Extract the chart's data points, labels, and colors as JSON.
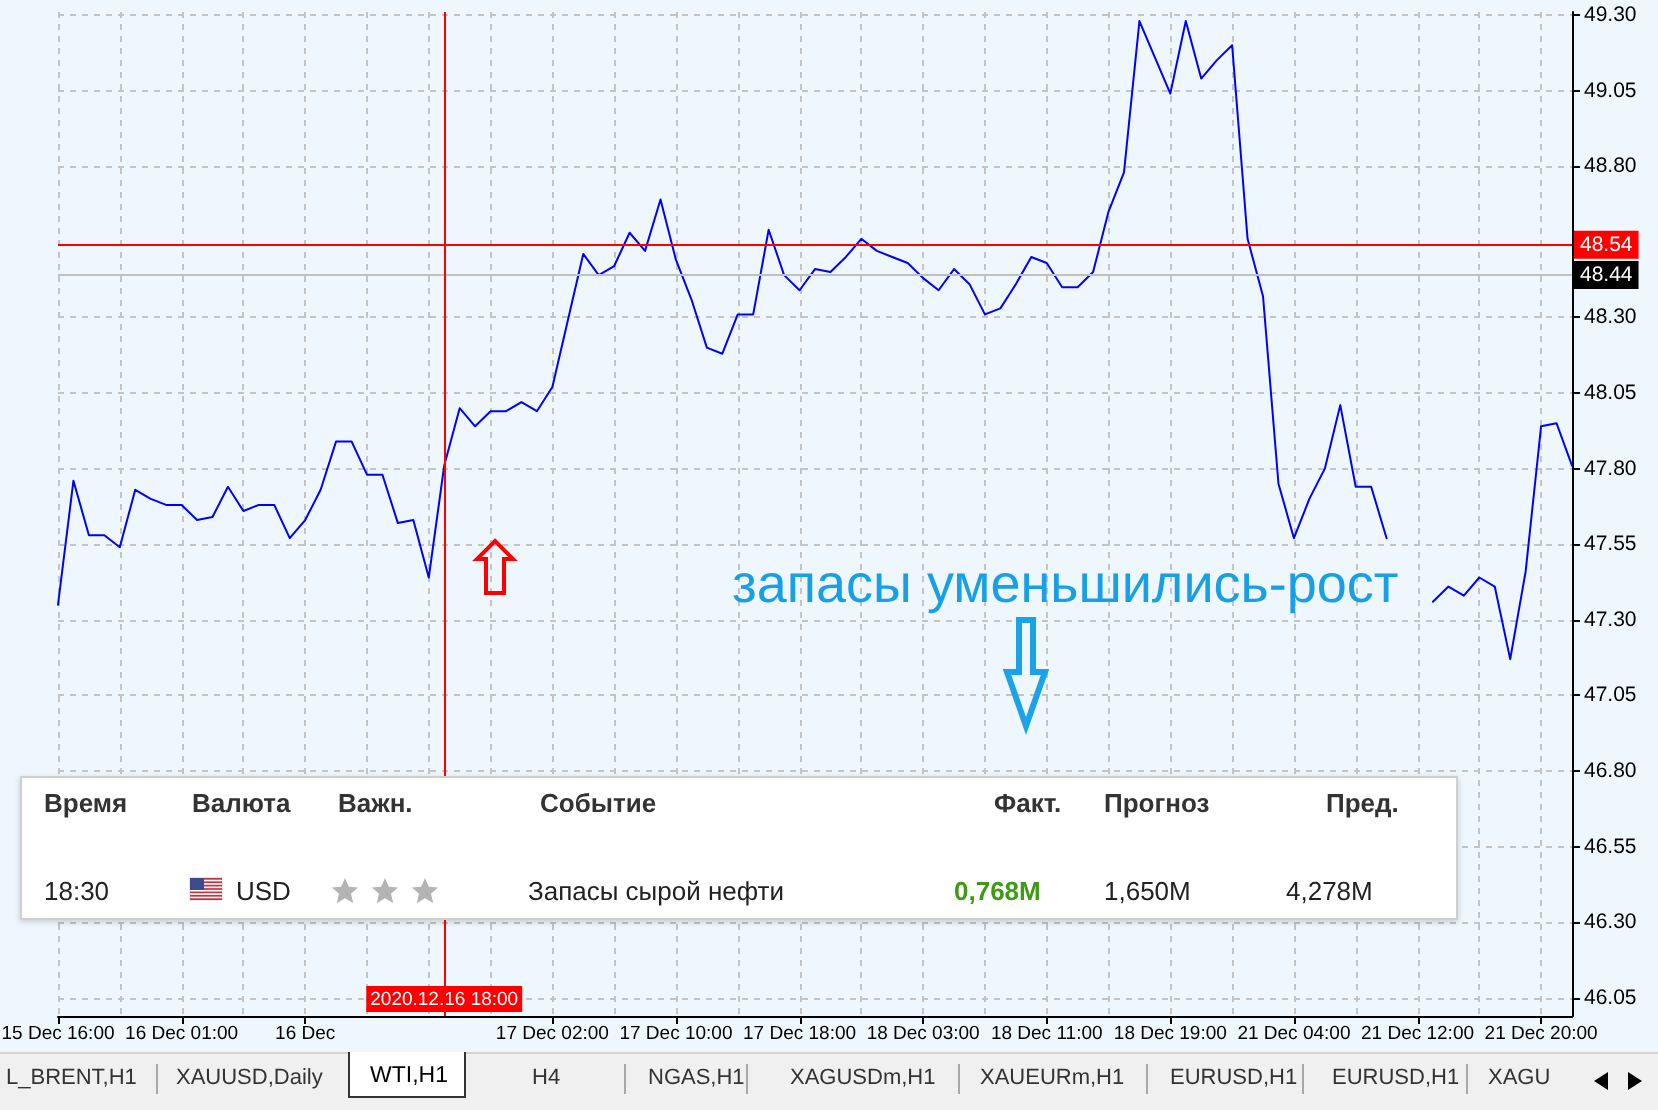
{
  "chart_data": {
    "type": "line",
    "categories": [
      "15 Dec 16:00",
      null,
      null,
      null,
      null,
      null,
      null,
      null,
      "16 Dec 01:00",
      null,
      null,
      null,
      null,
      null,
      null,
      null,
      "16 Dec",
      null,
      null,
      null,
      null,
      null,
      null,
      null,
      null,
      "2020.12.16 18:00",
      null,
      null,
      null,
      null,
      null,
      null,
      "17 Dec 02:00",
      null,
      null,
      null,
      null,
      null,
      null,
      null,
      "17 Dec 10:00",
      null,
      null,
      null,
      null,
      null,
      null,
      null,
      "17 Dec 18:00",
      null,
      null,
      null,
      null,
      null,
      null,
      null,
      "18 Dec 03:00",
      null,
      null,
      null,
      null,
      null,
      null,
      null,
      "18 Dec 11:00",
      null,
      null,
      null,
      null,
      null,
      null,
      null,
      "18 Dec 19:00",
      null,
      null,
      null,
      null,
      null,
      null,
      null,
      "21 Dec 04:00",
      null,
      null,
      null,
      null,
      null,
      null,
      null,
      "21 Dec 12:00",
      null,
      null,
      null,
      null,
      null,
      null,
      null,
      "21 Dec 20:00",
      null,
      null
    ],
    "values": [
      47.35,
      47.76,
      47.58,
      47.58,
      47.54,
      47.73,
      47.7,
      47.68,
      47.68,
      47.63,
      47.64,
      47.74,
      47.66,
      47.68,
      47.68,
      47.57,
      47.63,
      47.73,
      47.89,
      47.89,
      47.78,
      47.78,
      47.62,
      47.63,
      47.44,
      47.81,
      48.0,
      47.94,
      47.99,
      47.99,
      48.02,
      47.99,
      48.07,
      48.29,
      48.51,
      48.44,
      48.47,
      48.58,
      48.52,
      48.69,
      48.49,
      48.36,
      48.2,
      48.18,
      48.31,
      48.31,
      48.59,
      48.44,
      48.39,
      48.46,
      48.45,
      48.5,
      48.56,
      48.52,
      48.5,
      48.48,
      48.43,
      48.39,
      48.46,
      48.41,
      48.31,
      48.33,
      48.41,
      48.5,
      48.48,
      48.4,
      48.4,
      48.45,
      48.65,
      48.78,
      49.28,
      49.16,
      49.04,
      49.28,
      49.09,
      49.15,
      49.2,
      48.56,
      48.37,
      47.75,
      47.57,
      47.7,
      47.8,
      48.01,
      47.74,
      47.74,
      47.57,
      null,
      null,
      47.36,
      47.41,
      47.38,
      47.44,
      47.41,
      47.17,
      47.46,
      47.94,
      47.95,
      47.81
    ],
    "color": "#0000ff",
    "marker": "none",
    "line_style": "solid",
    "ylim": [
      45.99,
      49.31
    ],
    "yticks": [
      {
        "value": 46.05,
        "label": "46.05"
      },
      {
        "value": 46.3,
        "label": "46.30"
      },
      {
        "value": 46.55,
        "label": "46.55"
      },
      {
        "value": 46.8,
        "label": "46.80"
      },
      {
        "value": 47.05,
        "label": "47.05"
      },
      {
        "value": 47.3,
        "label": "47.30"
      },
      {
        "value": 47.55,
        "label": "47.55"
      },
      {
        "value": 47.8,
        "label": "47.80"
      },
      {
        "value": 48.05,
        "label": "48.05"
      },
      {
        "value": 48.3,
        "label": "48.30"
      },
      {
        "value": 48.8,
        "label": "48.80"
      },
      {
        "value": 49.05,
        "label": "49.05"
      },
      {
        "value": 49.3,
        "label": "49.30"
      }
    ],
    "grid": true,
    "ref_lines": [
      {
        "axis": "y",
        "value": 48.54,
        "label": "48.54",
        "color": "#ff0000"
      },
      {
        "axis": "y",
        "value": 48.44,
        "label": "48.44",
        "color": "#c0c0c0"
      },
      {
        "axis": "x",
        "value": "2020.12.16 18:00",
        "color": "#ff0000"
      }
    ],
    "annotations": [
      "запасы уменьшились-рост",
      "Время",
      "Валюта",
      "Важн.",
      "Событие",
      "Факт.",
      "Прогноз",
      "Пред.",
      "18:30",
      "USD",
      "Запасы сырой нефти",
      "0,768M",
      "1,650M",
      "4,278M",
      "L_BRENT,H1",
      "XAUUSD,Daily",
      "WTI,H1",
      "H4",
      "NGAS,H1",
      "XAGUSDm,H1",
      "XAUEURm,H1",
      "EURUSD,H1",
      "EURUSD,H1",
      "XAGU"
    ]
  }
}
